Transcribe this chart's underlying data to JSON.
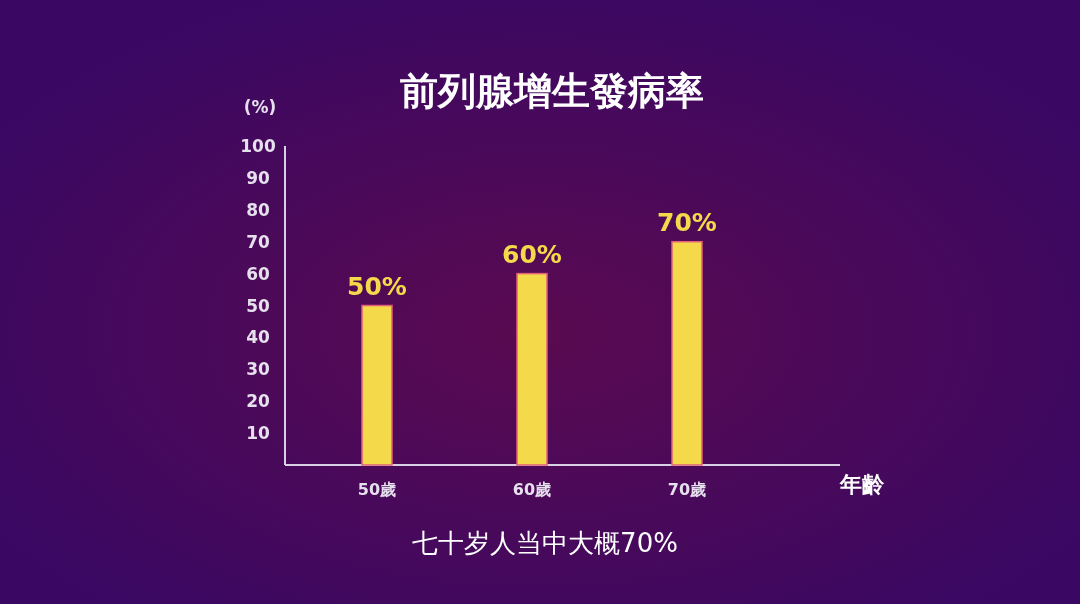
{
  "chart_data": {
    "type": "bar",
    "title": "前列腺增生發病率",
    "xlabel": "年齡",
    "ylabel": "(%)",
    "categories": [
      "50歲",
      "60歲",
      "70歲"
    ],
    "values": [
      50,
      60,
      70
    ],
    "value_labels": [
      "50%",
      "60%",
      "70%"
    ],
    "color": "#f4da4a",
    "ylim": [
      0,
      100
    ],
    "yticks": [
      10,
      20,
      30,
      40,
      50,
      60,
      70,
      80,
      90,
      100
    ],
    "annotations": [
      "七十岁人当中大概70%"
    ]
  }
}
